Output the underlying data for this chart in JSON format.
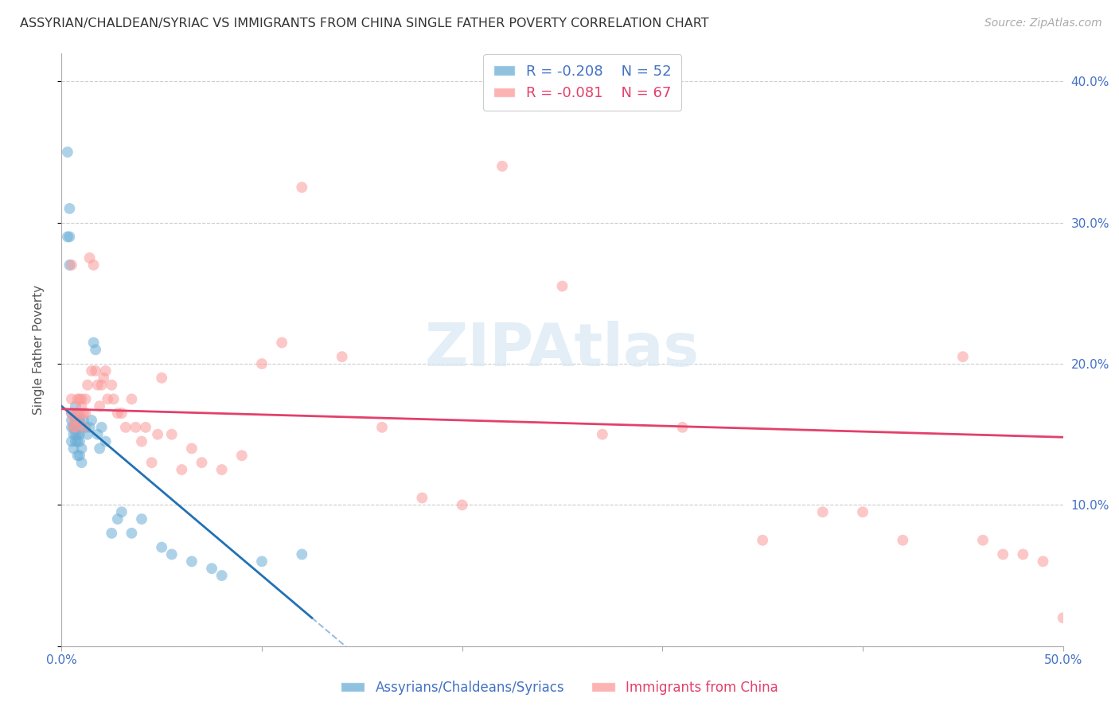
{
  "title": "ASSYRIAN/CHALDEAN/SYRIAC VS IMMIGRANTS FROM CHINA SINGLE FATHER POVERTY CORRELATION CHART",
  "source": "Source: ZipAtlas.com",
  "ylabel": "Single Father Poverty",
  "xlim": [
    0.0,
    0.5
  ],
  "ylim": [
    0.0,
    0.42
  ],
  "xticks": [
    0.0,
    0.1,
    0.2,
    0.3,
    0.4,
    0.5
  ],
  "xtick_labels": [
    "0.0%",
    "",
    "",
    "",
    "",
    "50.0%"
  ],
  "yticks": [
    0.0,
    0.1,
    0.2,
    0.3,
    0.4
  ],
  "right_ytick_labels": [
    "40.0%",
    "30.0%",
    "20.0%",
    "10.0%"
  ],
  "right_yticks": [
    0.4,
    0.3,
    0.2,
    0.1
  ],
  "blue_color": "#6baed6",
  "pink_color": "#fb9a99",
  "blue_line_color": "#2171b5",
  "pink_line_color": "#e3406a",
  "blue_R": "-0.208",
  "blue_N": "52",
  "pink_R": "-0.081",
  "pink_N": "67",
  "legend_label_blue": "Assyrians/Chaldeans/Syriacs",
  "legend_label_pink": "Immigrants from China",
  "watermark": "ZIPAtlas",
  "blue_line_x0": 0.0,
  "blue_line_y0": 0.17,
  "blue_line_x1": 0.125,
  "blue_line_y1": 0.02,
  "blue_line_xdash_end": 0.5,
  "pink_line_x0": 0.0,
  "pink_line_y0": 0.168,
  "pink_line_x1": 0.5,
  "pink_line_y1": 0.148,
  "blue_scatter_x": [
    0.003,
    0.003,
    0.004,
    0.004,
    0.004,
    0.005,
    0.005,
    0.005,
    0.005,
    0.006,
    0.006,
    0.006,
    0.007,
    0.007,
    0.007,
    0.007,
    0.007,
    0.008,
    0.008,
    0.008,
    0.008,
    0.008,
    0.009,
    0.009,
    0.009,
    0.009,
    0.01,
    0.01,
    0.01,
    0.011,
    0.012,
    0.013,
    0.014,
    0.015,
    0.016,
    0.017,
    0.018,
    0.019,
    0.02,
    0.022,
    0.025,
    0.028,
    0.03,
    0.035,
    0.04,
    0.05,
    0.055,
    0.065,
    0.075,
    0.08,
    0.1,
    0.12
  ],
  "blue_scatter_y": [
    0.35,
    0.29,
    0.31,
    0.29,
    0.27,
    0.165,
    0.16,
    0.155,
    0.145,
    0.155,
    0.15,
    0.14,
    0.17,
    0.16,
    0.155,
    0.15,
    0.145,
    0.165,
    0.16,
    0.15,
    0.145,
    0.135,
    0.16,
    0.15,
    0.145,
    0.135,
    0.155,
    0.14,
    0.13,
    0.16,
    0.155,
    0.15,
    0.155,
    0.16,
    0.215,
    0.21,
    0.15,
    0.14,
    0.155,
    0.145,
    0.08,
    0.09,
    0.095,
    0.08,
    0.09,
    0.07,
    0.065,
    0.06,
    0.055,
    0.05,
    0.06,
    0.065
  ],
  "pink_scatter_x": [
    0.005,
    0.005,
    0.005,
    0.006,
    0.006,
    0.007,
    0.007,
    0.008,
    0.008,
    0.009,
    0.009,
    0.01,
    0.01,
    0.011,
    0.011,
    0.012,
    0.012,
    0.013,
    0.014,
    0.015,
    0.016,
    0.017,
    0.018,
    0.019,
    0.02,
    0.021,
    0.022,
    0.023,
    0.025,
    0.026,
    0.028,
    0.03,
    0.032,
    0.035,
    0.037,
    0.04,
    0.042,
    0.045,
    0.048,
    0.05,
    0.055,
    0.06,
    0.065,
    0.07,
    0.08,
    0.09,
    0.1,
    0.11,
    0.12,
    0.14,
    0.16,
    0.18,
    0.2,
    0.22,
    0.25,
    0.27,
    0.31,
    0.35,
    0.38,
    0.4,
    0.42,
    0.45,
    0.46,
    0.47,
    0.48,
    0.49,
    0.5
  ],
  "pink_scatter_y": [
    0.27,
    0.175,
    0.165,
    0.155,
    0.16,
    0.155,
    0.165,
    0.16,
    0.175,
    0.175,
    0.165,
    0.17,
    0.175,
    0.155,
    0.165,
    0.175,
    0.165,
    0.185,
    0.275,
    0.195,
    0.27,
    0.195,
    0.185,
    0.17,
    0.185,
    0.19,
    0.195,
    0.175,
    0.185,
    0.175,
    0.165,
    0.165,
    0.155,
    0.175,
    0.155,
    0.145,
    0.155,
    0.13,
    0.15,
    0.19,
    0.15,
    0.125,
    0.14,
    0.13,
    0.125,
    0.135,
    0.2,
    0.215,
    0.325,
    0.205,
    0.155,
    0.105,
    0.1,
    0.34,
    0.255,
    0.15,
    0.155,
    0.075,
    0.095,
    0.095,
    0.075,
    0.205,
    0.075,
    0.065,
    0.065,
    0.06,
    0.02
  ]
}
